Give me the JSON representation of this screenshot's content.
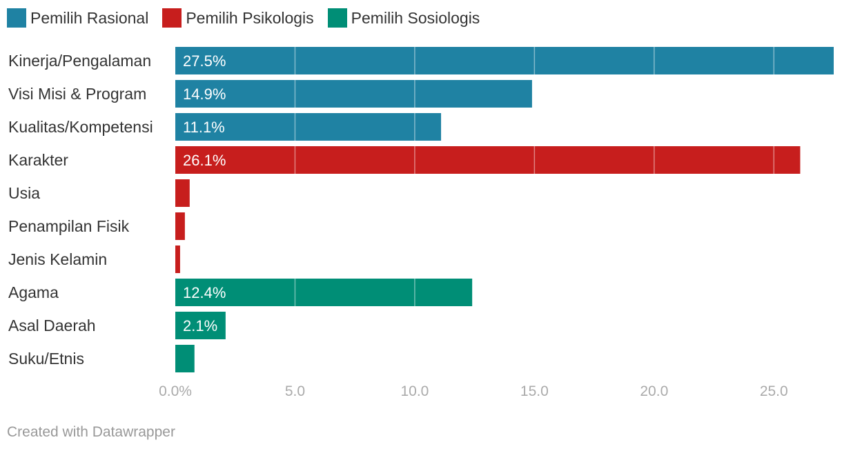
{
  "legend": [
    {
      "label": "Pemilih Rasional",
      "color": "#1f82a3"
    },
    {
      "label": "Pemilih Psikologis",
      "color": "#c71e1d"
    },
    {
      "label": "Pemilih Sosiologis",
      "color": "#008e76"
    }
  ],
  "chart_data": {
    "type": "bar",
    "orientation": "horizontal",
    "categories": [
      "Kinerja/Pengalaman",
      "Visi Misi & Program",
      "Kualitas/Kompetensi",
      "Karakter",
      "Usia",
      "Penampilan Fisik",
      "Jenis Kelamin",
      "Agama",
      "Asal Daerah",
      "Suku/Etnis"
    ],
    "values": [
      27.5,
      14.9,
      11.1,
      26.1,
      0.6,
      0.4,
      0.2,
      12.4,
      2.1,
      0.8
    ],
    "value_labels": [
      "27.5%",
      "14.9%",
      "11.1%",
      "26.1%",
      "",
      "",
      "",
      "12.4%",
      "2.1%",
      ""
    ],
    "groups": [
      "Pemilih Rasional",
      "Pemilih Rasional",
      "Pemilih Rasional",
      "Pemilih Psikologis",
      "Pemilih Psikologis",
      "Pemilih Psikologis",
      "Pemilih Psikologis",
      "Pemilih Sosiologis",
      "Pemilih Sosiologis",
      "Pemilih Sosiologis"
    ],
    "xticks": [
      0,
      5,
      10,
      15,
      20,
      25
    ],
    "xtick_labels": [
      "0.0%",
      "5.0",
      "10.0",
      "15.0",
      "20.0",
      "25.0"
    ],
    "xlim": [
      0,
      27.5
    ],
    "grid": true,
    "legend_position": "top-left"
  },
  "footer": "Created with Datawrapper"
}
